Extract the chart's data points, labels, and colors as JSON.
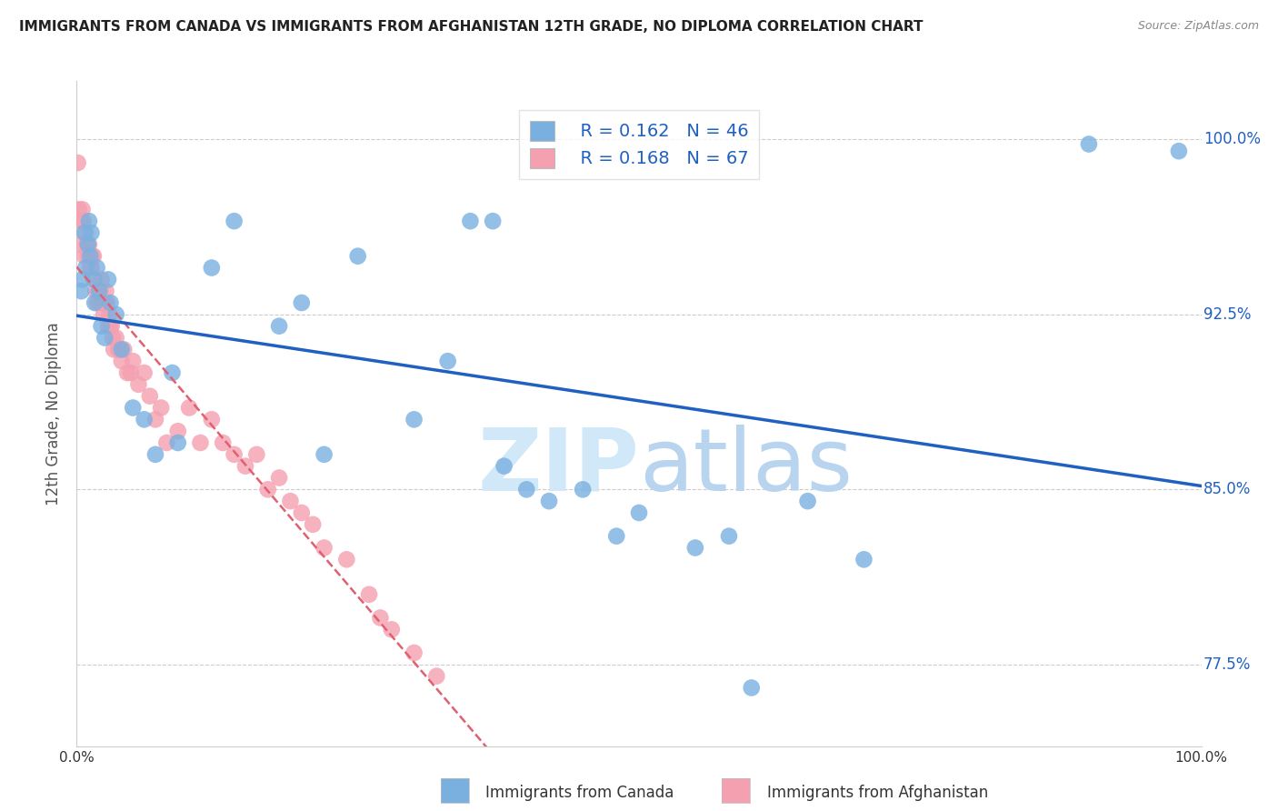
{
  "title": "IMMIGRANTS FROM CANADA VS IMMIGRANTS FROM AFGHANISTAN 12TH GRADE, NO DIPLOMA CORRELATION CHART",
  "source": "Source: ZipAtlas.com",
  "ylabel": "12th Grade, No Diploma",
  "yticks": [
    77.5,
    85.0,
    92.5,
    100.0
  ],
  "ytick_labels": [
    "77.5%",
    "85.0%",
    "92.5%",
    "100.0%"
  ],
  "xmin": 0.0,
  "xmax": 100.0,
  "ymin": 74.0,
  "ymax": 102.5,
  "canada_R": 0.162,
  "canada_N": 46,
  "afghanistan_R": 0.168,
  "afghanistan_N": 67,
  "canada_color": "#7ab0e0",
  "afghanistan_color": "#f4a0b0",
  "canada_line_color": "#2060c0",
  "afghanistan_line_color": "#e06070",
  "watermark_zip": "ZIP",
  "watermark_atlas": "atlas",
  "watermark_color": "#d0e8f8",
  "canada_x": [
    0.4,
    0.5,
    0.7,
    0.8,
    1.0,
    1.1,
    1.2,
    1.3,
    1.5,
    1.6,
    1.8,
    2.0,
    2.2,
    2.5,
    2.8,
    3.0,
    3.5,
    4.0,
    5.0,
    6.0,
    7.0,
    8.5,
    9.0,
    12.0,
    14.0,
    18.0,
    20.0,
    22.0,
    25.0,
    30.0,
    33.0,
    35.0,
    37.0,
    38.0,
    40.0,
    42.0,
    45.0,
    48.0,
    50.0,
    55.0,
    58.0,
    60.0,
    65.0,
    70.0,
    90.0,
    98.0
  ],
  "canada_y": [
    93.5,
    94.0,
    96.0,
    94.5,
    95.5,
    96.5,
    95.0,
    96.0,
    94.0,
    93.0,
    94.5,
    93.5,
    92.0,
    91.5,
    94.0,
    93.0,
    92.5,
    91.0,
    88.5,
    88.0,
    86.5,
    90.0,
    87.0,
    94.5,
    96.5,
    92.0,
    93.0,
    86.5,
    95.0,
    88.0,
    90.5,
    96.5,
    96.5,
    86.0,
    85.0,
    84.5,
    85.0,
    83.0,
    84.0,
    82.5,
    83.0,
    76.5,
    84.5,
    82.0,
    99.8,
    99.5
  ],
  "afghanistan_x": [
    0.1,
    0.2,
    0.3,
    0.4,
    0.5,
    0.6,
    0.7,
    0.8,
    0.9,
    1.0,
    1.1,
    1.2,
    1.3,
    1.4,
    1.5,
    1.6,
    1.7,
    1.8,
    1.9,
    2.0,
    2.1,
    2.2,
    2.3,
    2.4,
    2.5,
    2.6,
    2.7,
    2.8,
    2.9,
    3.0,
    3.1,
    3.2,
    3.3,
    3.5,
    3.7,
    4.0,
    4.2,
    4.5,
    5.0,
    5.5,
    6.0,
    6.5,
    7.0,
    7.5,
    8.0,
    9.0,
    10.0,
    11.0,
    12.0,
    13.0,
    14.0,
    15.0,
    16.0,
    17.0,
    18.0,
    19.0,
    20.0,
    21.0,
    22.0,
    24.0,
    26.0,
    27.0,
    28.0,
    30.0,
    32.0,
    3.8,
    4.8
  ],
  "afghanistan_y": [
    99.0,
    97.0,
    95.5,
    96.5,
    97.0,
    96.5,
    95.0,
    96.0,
    95.5,
    95.0,
    95.5,
    94.5,
    94.5,
    95.0,
    95.0,
    94.0,
    93.5,
    93.0,
    93.5,
    93.0,
    93.5,
    94.0,
    93.0,
    92.5,
    93.0,
    93.5,
    93.0,
    92.0,
    92.5,
    92.0,
    92.0,
    91.5,
    91.0,
    91.5,
    91.0,
    90.5,
    91.0,
    90.0,
    90.5,
    89.5,
    90.0,
    89.0,
    88.0,
    88.5,
    87.0,
    87.5,
    88.5,
    87.0,
    88.0,
    87.0,
    86.5,
    86.0,
    86.5,
    85.0,
    85.5,
    84.5,
    84.0,
    83.5,
    82.5,
    82.0,
    80.5,
    79.5,
    79.0,
    78.0,
    77.0,
    91.0,
    90.0
  ]
}
